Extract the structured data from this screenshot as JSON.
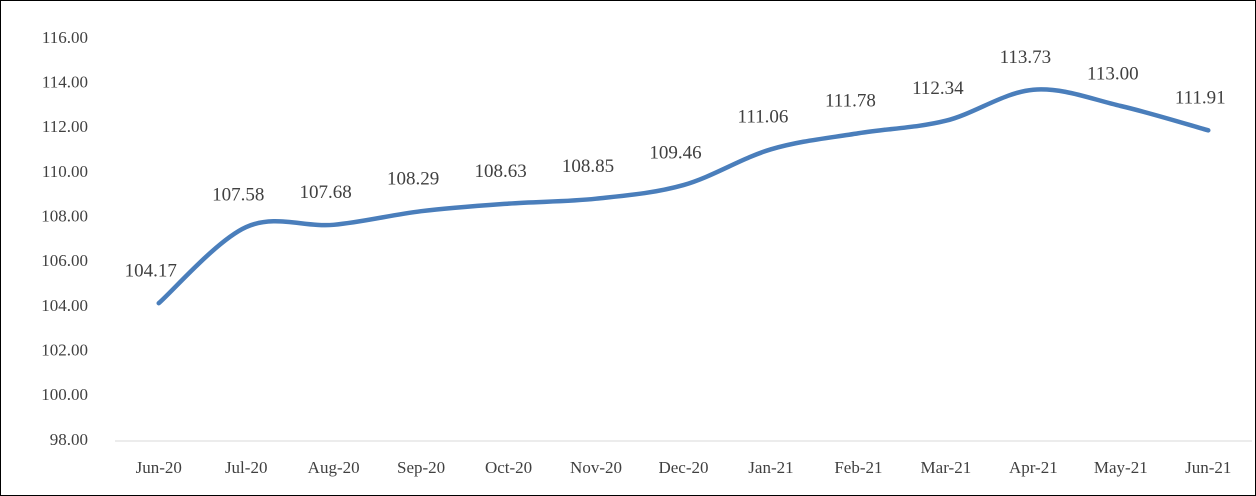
{
  "chart_data": {
    "type": "line",
    "categories": [
      "Jun-20",
      "Jul-20",
      "Aug-20",
      "Sep-20",
      "Oct-20",
      "Nov-20",
      "Dec-20",
      "Jan-21",
      "Feb-21",
      "Mar-21",
      "Apr-21",
      "May-21",
      "Jun-21"
    ],
    "values": [
      104.17,
      107.58,
      107.68,
      108.29,
      108.63,
      108.85,
      109.46,
      111.06,
      111.78,
      112.34,
      113.73,
      113.0,
      111.91
    ],
    "value_labels": [
      "104.17",
      "107.58",
      "107.68",
      "108.29",
      "108.63",
      "108.85",
      "109.46",
      "111.06",
      "111.78",
      "112.34",
      "113.73",
      "113.00",
      "111.91"
    ],
    "color": "#4a7ebb",
    "ylim": [
      98,
      116
    ],
    "yticks": [
      {
        "value": 98,
        "label": "98.00"
      },
      {
        "value": 100,
        "label": "100.00"
      },
      {
        "value": 102,
        "label": "102.00"
      },
      {
        "value": 104,
        "label": "104.00"
      },
      {
        "value": 106,
        "label": "106.00"
      },
      {
        "value": 108,
        "label": "108.00"
      },
      {
        "value": 110,
        "label": "110.00"
      },
      {
        "value": 112,
        "label": "112.00"
      },
      {
        "value": 114,
        "label": "114.00"
      },
      {
        "value": 116,
        "label": "116.00"
      }
    ],
    "grid": false,
    "smooth": true
  }
}
